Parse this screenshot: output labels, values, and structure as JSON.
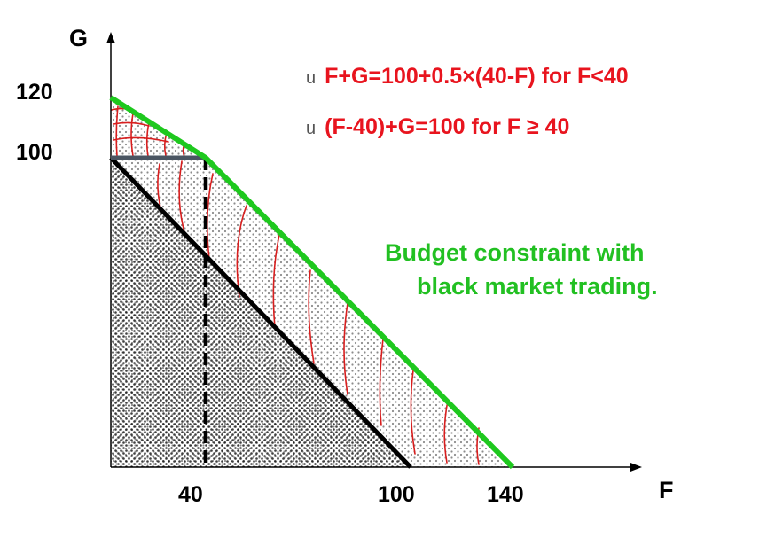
{
  "axes": {
    "y_label": "G",
    "x_label": "F",
    "y_ticks": [
      "120",
      "100"
    ],
    "x_ticks": [
      "40",
      "100",
      "140"
    ]
  },
  "equations": [
    {
      "bullet": "u",
      "text": "F+G=100+0.5×(40-F) for F<40"
    },
    {
      "bullet": "u",
      "text": "(F-40)+G=100 for F ≥ 40"
    }
  ],
  "caption": {
    "line1": "Budget constraint with",
    "line2": "black market trading."
  },
  "colors": {
    "budget_line": "#1ec81e",
    "equation_text": "#e8141e",
    "caption_text": "#22c022",
    "original_line": "#000000",
    "ration_line": "#4a5562",
    "hatch": "#d81e1e"
  }
}
